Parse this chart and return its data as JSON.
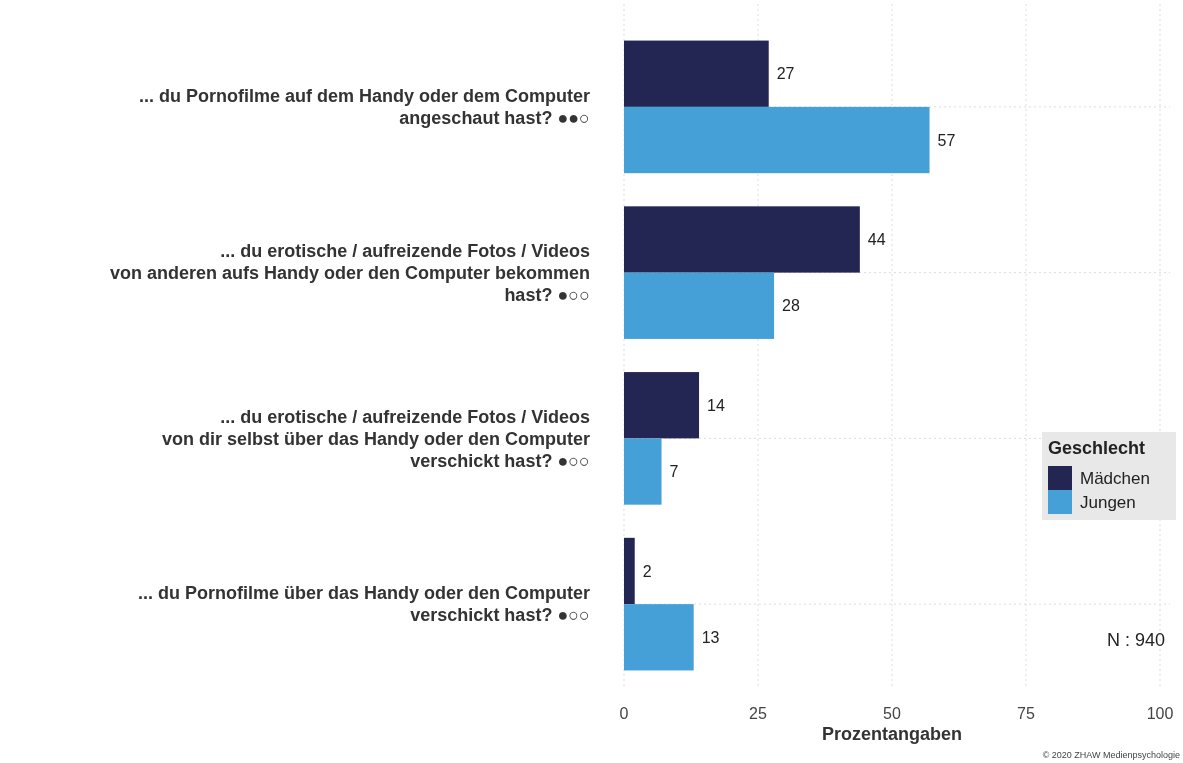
{
  "chart_data": {
    "type": "bar",
    "orientation": "horizontal",
    "xlabel": "Prozentangaben",
    "legend_title": "Geschlecht",
    "legend": "right",
    "categories": [
      "... du Pornofilme auf dem Handy oder dem Computer\nangeschaut hast? ●●○",
      "... du erotische / aufreizende Fotos / Videos\nvon anderen aufs Handy oder den Computer bekommen\nhast? ●○○",
      "... du erotische / aufreizende Fotos / Videos\nvon dir selbst über das Handy oder den Computer\nverschickt hast? ●○○",
      "... du Pornofilme über das Handy oder den Computer\nverschickt hast? ●○○"
    ],
    "series": [
      {
        "name": "Mädchen",
        "color": "#232553",
        "values": [
          27,
          44,
          14,
          2
        ]
      },
      {
        "name": "Jungen",
        "color": "#46a0d8",
        "values": [
          57,
          28,
          7,
          13
        ]
      }
    ],
    "xlim": [
      0,
      100
    ],
    "xticks": [
      0,
      25,
      50,
      75,
      100
    ],
    "grid": true,
    "data_labels": true,
    "annotations": [
      "N : 940",
      "© 2020 ZHAW Medienpsychologie"
    ]
  }
}
